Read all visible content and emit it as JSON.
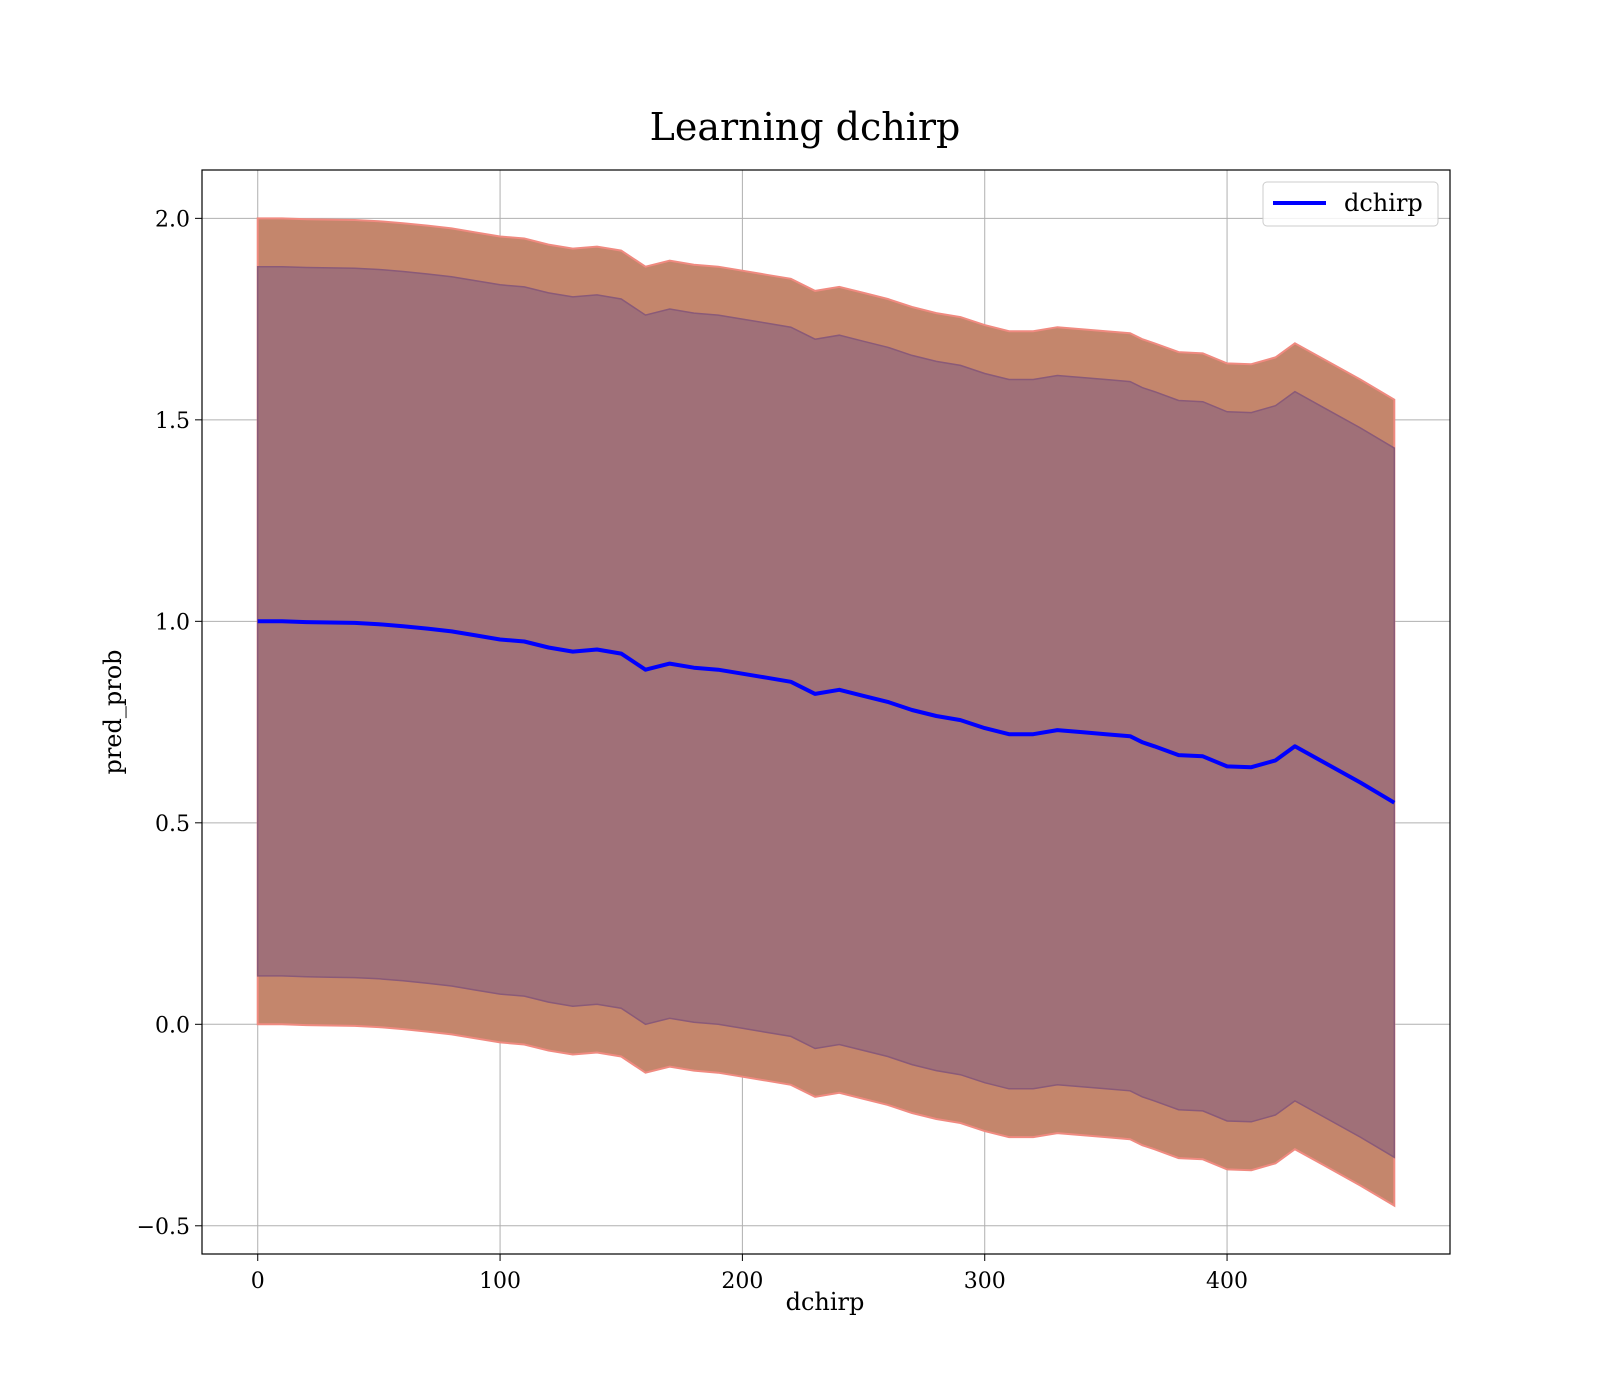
{
  "chart_data": {
    "type": "line",
    "title": "Learning dchirp",
    "xlabel": "dchirp",
    "ylabel": "pred_prob",
    "xlim": [
      -23,
      492
    ],
    "ylim": [
      -0.57,
      2.12
    ],
    "xticks": [
      0,
      100,
      200,
      300,
      400
    ],
    "yticks": [
      -0.5,
      0.0,
      0.5,
      1.0,
      1.5,
      2.0
    ],
    "xtick_labels": [
      "0",
      "100",
      "200",
      "300",
      "400"
    ],
    "ytick_labels": [
      "−0.5",
      "0.0",
      "0.5",
      "1.0",
      "1.5",
      "2.0"
    ],
    "grid": true,
    "legend": {
      "position": "top-right",
      "entries": [
        "dchirp"
      ]
    },
    "colors": {
      "line": "#0000ff",
      "outer_band": "#c4866c",
      "outer_band_edge": "#f08a80",
      "inner_band": "#a07078",
      "inner_band_edge": "#8a5a78"
    },
    "series": [
      {
        "name": "dchirp",
        "x": [
          0,
          10,
          20,
          30,
          40,
          50,
          60,
          70,
          80,
          90,
          100,
          110,
          120,
          130,
          140,
          150,
          160,
          170,
          180,
          190,
          200,
          210,
          220,
          230,
          240,
          250,
          260,
          270,
          280,
          290,
          300,
          310,
          320,
          330,
          340,
          350,
          360,
          365,
          370,
          380,
          390,
          400,
          410,
          420,
          428,
          440,
          455,
          469
        ],
        "y": [
          1.0,
          1.0,
          0.998,
          0.997,
          0.996,
          0.993,
          0.988,
          0.982,
          0.975,
          0.965,
          0.955,
          0.95,
          0.935,
          0.925,
          0.93,
          0.92,
          0.88,
          0.895,
          0.885,
          0.88,
          0.87,
          0.86,
          0.85,
          0.82,
          0.83,
          0.815,
          0.8,
          0.78,
          0.765,
          0.755,
          0.735,
          0.72,
          0.72,
          0.73,
          0.725,
          0.72,
          0.715,
          0.7,
          0.69,
          0.668,
          0.665,
          0.64,
          0.638,
          0.655,
          0.69,
          0.65,
          0.6,
          0.55
        ],
        "outer_band_upper": [
          2.0,
          2.0,
          1.998,
          1.997,
          1.996,
          1.993,
          1.988,
          1.982,
          1.975,
          1.965,
          1.955,
          1.95,
          1.935,
          1.925,
          1.93,
          1.92,
          1.88,
          1.895,
          1.885,
          1.88,
          1.87,
          1.86,
          1.85,
          1.82,
          1.83,
          1.815,
          1.8,
          1.78,
          1.765,
          1.755,
          1.735,
          1.72,
          1.72,
          1.73,
          1.725,
          1.72,
          1.715,
          1.7,
          1.69,
          1.668,
          1.665,
          1.64,
          1.638,
          1.655,
          1.69,
          1.65,
          1.6,
          1.55
        ],
        "outer_band_lower": [
          0.0,
          0.0,
          -0.002,
          -0.003,
          -0.004,
          -0.007,
          -0.012,
          -0.018,
          -0.025,
          -0.035,
          -0.045,
          -0.05,
          -0.065,
          -0.075,
          -0.07,
          -0.08,
          -0.12,
          -0.105,
          -0.115,
          -0.12,
          -0.13,
          -0.14,
          -0.15,
          -0.18,
          -0.17,
          -0.185,
          -0.2,
          -0.22,
          -0.235,
          -0.245,
          -0.265,
          -0.28,
          -0.28,
          -0.27,
          -0.275,
          -0.28,
          -0.285,
          -0.3,
          -0.31,
          -0.332,
          -0.335,
          -0.36,
          -0.362,
          -0.345,
          -0.31,
          -0.35,
          -0.4,
          -0.45
        ],
        "inner_band_upper": [
          1.88,
          1.88,
          1.878,
          1.877,
          1.876,
          1.873,
          1.868,
          1.862,
          1.855,
          1.845,
          1.835,
          1.83,
          1.815,
          1.805,
          1.81,
          1.8,
          1.76,
          1.775,
          1.765,
          1.76,
          1.75,
          1.74,
          1.73,
          1.7,
          1.71,
          1.695,
          1.68,
          1.66,
          1.645,
          1.635,
          1.615,
          1.6,
          1.6,
          1.61,
          1.605,
          1.6,
          1.595,
          1.58,
          1.57,
          1.548,
          1.545,
          1.52,
          1.518,
          1.535,
          1.57,
          1.53,
          1.48,
          1.43
        ],
        "inner_band_lower": [
          0.12,
          0.12,
          0.118,
          0.117,
          0.116,
          0.113,
          0.108,
          0.102,
          0.095,
          0.085,
          0.075,
          0.07,
          0.055,
          0.045,
          0.05,
          0.04,
          0.0,
          0.015,
          0.005,
          0.0,
          -0.01,
          -0.02,
          -0.03,
          -0.06,
          -0.05,
          -0.065,
          -0.08,
          -0.1,
          -0.115,
          -0.125,
          -0.145,
          -0.16,
          -0.16,
          -0.15,
          -0.155,
          -0.16,
          -0.165,
          -0.18,
          -0.19,
          -0.212,
          -0.215,
          -0.24,
          -0.242,
          -0.225,
          -0.19,
          -0.23,
          -0.28,
          -0.33
        ]
      }
    ]
  }
}
